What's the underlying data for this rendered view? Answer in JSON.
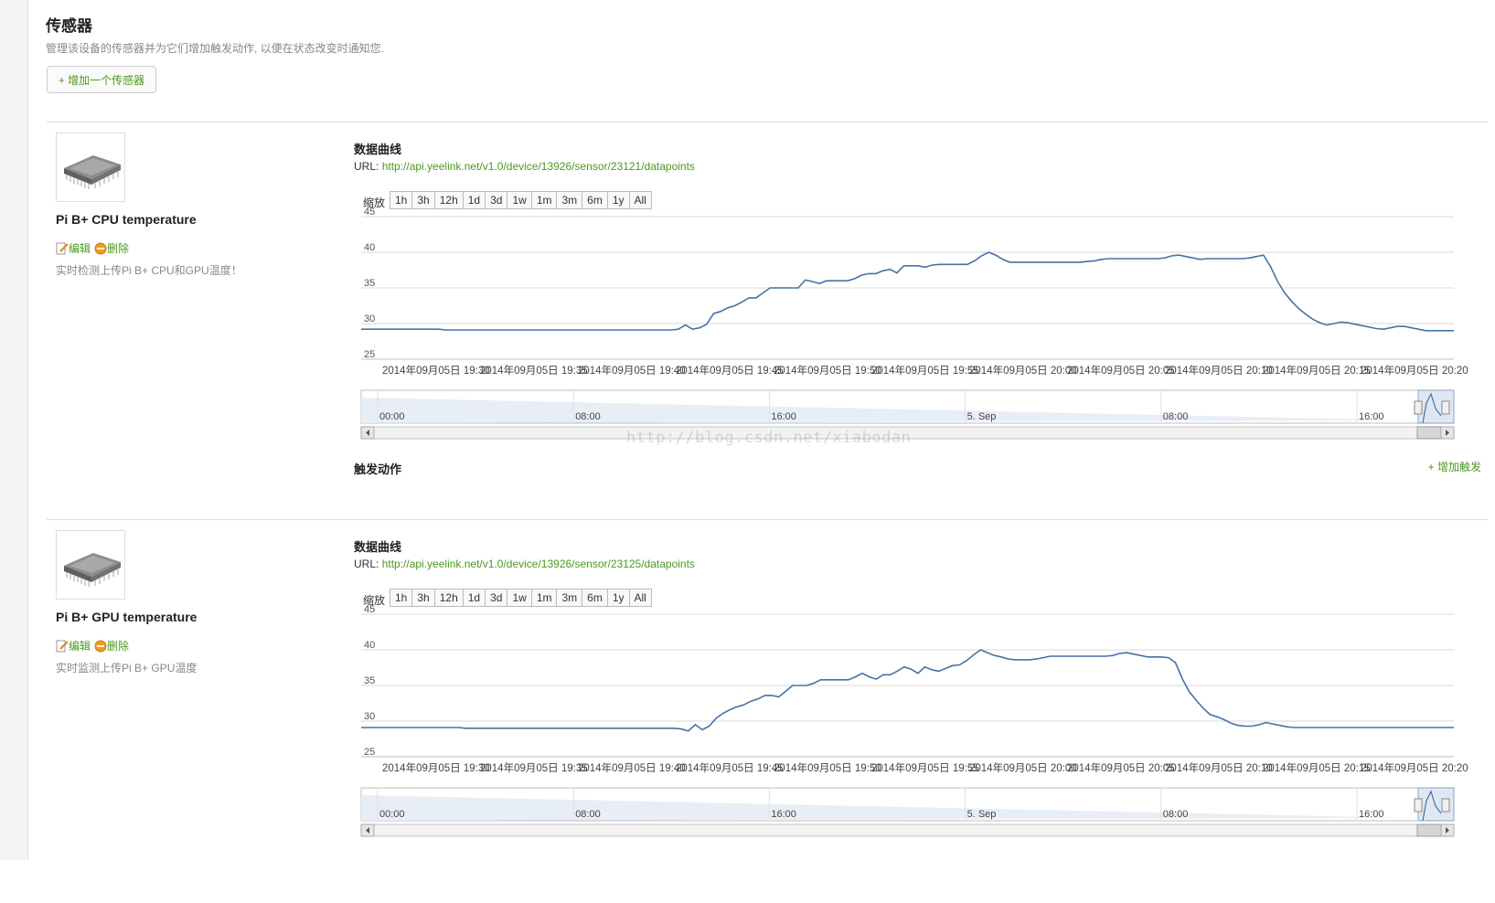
{
  "page": {
    "title": "传感器",
    "description": "管理该设备的传感器并为它们增加触发动作, 以便在状态改变时通知您.",
    "add_sensor_label": "+ 增加一个传感器",
    "watermark": "http://blog.csdn.net/xiabodan"
  },
  "colors": {
    "accent": "#4a9a1e",
    "series": "#4572a7",
    "navigator_fill": "#e8eef6"
  },
  "labels": {
    "data_curve": "数据曲线",
    "url_prefix": "URL: ",
    "zoom": "缩放",
    "zoom_options": [
      "1h",
      "3h",
      "12h",
      "1d",
      "3d",
      "1w",
      "1m",
      "3m",
      "6m",
      "1y",
      "All"
    ],
    "edit": "编辑",
    "delete": "删除",
    "trigger_actions": "触发动作",
    "add_trigger": "+ 增加触发"
  },
  "sensors": [
    {
      "name": "Pi B+ CPU temperature",
      "description": "实时检测上传Pi B+ CPU和GPU温度！",
      "url": "http://api.yeelink.net/v1.0/device/13926/sensor/23121/datapoints",
      "icon": "cpu-chip-icon"
    },
    {
      "name": "Pi B+ GPU temperature",
      "description": "实时监测上传Pi B+ GPU温度",
      "url": "http://api.yeelink.net/v1.0/device/13926/sensor/23125/datapoints",
      "icon": "cpu-chip-icon"
    }
  ],
  "chart_data": [
    {
      "type": "line",
      "series": [
        {
          "values": [
            29.2,
            29.2,
            29.2,
            29.2,
            29.2,
            29.2,
            29.2,
            29.2,
            29.2,
            29.2,
            29.2,
            29.2,
            29.1,
            29.1,
            29.1,
            29.1,
            29.1,
            29.1,
            29.1,
            29.1,
            29.1,
            29.1,
            29.1,
            29.1,
            29.1,
            29.1,
            29.1,
            29.1,
            29.1,
            29.1,
            29.1,
            29.1,
            29.1,
            29.1,
            29.1,
            29.1,
            29.1,
            29.1,
            29.1,
            29.1,
            29.1,
            29.1,
            29.1,
            29.1,
            29.1,
            29.2,
            29.8,
            29.2,
            29.4,
            29.9,
            31.4,
            31.7,
            32.2,
            32.5,
            33.0,
            33.6,
            33.6,
            34.3,
            35.0,
            35.0,
            35.0,
            35.0,
            35.0,
            36.1,
            35.9,
            35.6,
            36.0,
            36.0,
            36.0,
            36.0,
            36.3,
            36.8,
            37.0,
            37.0,
            37.4,
            37.6,
            37.1,
            38.1,
            38.1,
            38.1,
            37.9,
            38.2,
            38.3,
            38.3,
            38.3,
            38.3,
            38.3,
            38.8,
            39.5,
            40.0,
            39.6,
            39.0,
            38.6,
            38.6,
            38.6,
            38.6,
            38.6,
            38.6,
            38.6,
            38.6,
            38.6,
            38.6,
            38.6,
            38.7,
            38.8,
            39.0,
            39.1,
            39.1,
            39.1,
            39.1,
            39.1,
            39.1,
            39.1,
            39.1,
            39.2,
            39.5,
            39.6,
            39.4,
            39.2,
            39.0,
            39.1,
            39.1,
            39.1,
            39.1,
            39.1,
            39.1,
            39.2,
            39.4,
            39.6,
            38.0,
            35.9,
            34.3,
            33.1,
            32.1,
            31.3,
            30.6,
            30.1,
            29.8,
            30.0,
            30.2,
            30.1,
            29.9,
            29.7,
            29.5,
            29.3,
            29.2,
            29.4,
            29.6,
            29.6,
            29.4,
            29.2,
            29.0,
            29.0,
            29.0,
            29.0,
            29.0
          ]
        }
      ],
      "x_tick_labels": [
        "2014年09月05日 19:30",
        "2014年09月05日 19:35",
        "2014年09月05日 19:40",
        "2014年09月05日 19:45",
        "2014年09月05日 19:50",
        "2014年09月05日 19:55",
        "2014年09月05日 20:00",
        "2014年09月05日 20:05",
        "2014年09月05日 20:10",
        "2014年09月05日 20:15",
        "2014年09月05日 20:20"
      ],
      "y_ticks": [
        25,
        30,
        35,
        40,
        45
      ],
      "ylim": [
        25,
        45
      ],
      "navigator_ticks": [
        "00:00",
        "08:00",
        "16:00",
        "5. Sep",
        "08:00",
        "16:00"
      ],
      "grid": true
    },
    {
      "type": "line",
      "series": [
        {
          "values": [
            29.1,
            29.1,
            29.1,
            29.1,
            29.1,
            29.1,
            29.1,
            29.1,
            29.1,
            29.1,
            29.1,
            29.1,
            29.1,
            29.1,
            29.1,
            29.0,
            29.0,
            29.0,
            29.0,
            29.0,
            29.0,
            29.0,
            29.0,
            29.0,
            29.0,
            29.0,
            29.0,
            29.0,
            29.0,
            29.0,
            29.0,
            29.0,
            29.0,
            29.0,
            29.0,
            29.0,
            29.0,
            29.0,
            29.0,
            29.0,
            29.0,
            29.0,
            29.0,
            29.0,
            29.0,
            29.0,
            28.9,
            28.6,
            29.5,
            28.8,
            29.3,
            30.4,
            31.1,
            31.6,
            32.0,
            32.3,
            32.8,
            33.1,
            33.6,
            33.6,
            33.4,
            34.2,
            35.0,
            35.0,
            35.0,
            35.3,
            35.8,
            35.8,
            35.8,
            35.8,
            35.8,
            36.2,
            36.7,
            36.2,
            35.9,
            36.5,
            36.5,
            37.0,
            37.6,
            37.3,
            36.7,
            37.6,
            37.2,
            37.0,
            37.4,
            37.8,
            37.9,
            38.5,
            39.3,
            40.0,
            39.6,
            39.2,
            39.0,
            38.7,
            38.6,
            38.6,
            38.6,
            38.7,
            38.9,
            39.1,
            39.1,
            39.1,
            39.1,
            39.1,
            39.1,
            39.1,
            39.1,
            39.1,
            39.2,
            39.5,
            39.6,
            39.4,
            39.2,
            39.0,
            39.0,
            39.0,
            38.9,
            38.2,
            35.9,
            34.1,
            32.9,
            31.8,
            30.9,
            30.6,
            30.2,
            29.7,
            29.4,
            29.3,
            29.3,
            29.5,
            29.8,
            29.6,
            29.4,
            29.2,
            29.1,
            29.1,
            29.1,
            29.1,
            29.1,
            29.1,
            29.1,
            29.1,
            29.1,
            29.1,
            29.1,
            29.1,
            29.1,
            29.1,
            29.1,
            29.1,
            29.1,
            29.1,
            29.1,
            29.1,
            29.1,
            29.1,
            29.1,
            29.1
          ]
        }
      ],
      "x_tick_labels": [
        "2014年09月05日 19:30",
        "2014年09月05日 19:35",
        "2014年09月05日 19:40",
        "2014年09月05日 19:45",
        "2014年09月05日 19:50",
        "2014年09月05日 19:55",
        "2014年09月05日 20:00",
        "2014年09月05日 20:05",
        "2014年09月05日 20:10",
        "2014年09月05日 20:15",
        "2014年09月05日 20:20"
      ],
      "y_ticks": [
        25,
        30,
        35,
        40,
        45
      ],
      "ylim": [
        25,
        45
      ],
      "navigator_ticks": [
        "00:00",
        "08:00",
        "16:00",
        "5. Sep",
        "08:00",
        "16:00"
      ],
      "grid": true
    }
  ]
}
